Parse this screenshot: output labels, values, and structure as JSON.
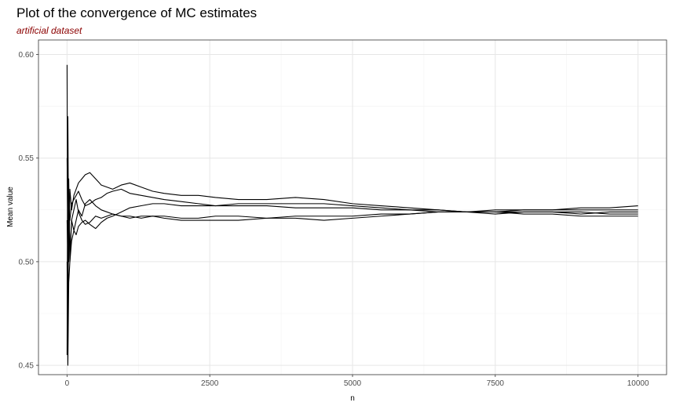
{
  "chart_data": {
    "type": "line",
    "title": "Plot of the convergence of MC estimates",
    "subtitle": "artificial dataset",
    "subtitle_color": "#8b0000",
    "xlabel": "n",
    "ylabel": "Mean value",
    "xlim": [
      -500,
      10500
    ],
    "ylim": [
      0.4455,
      0.607
    ],
    "xticks": [
      0,
      2500,
      5000,
      7500,
      10000
    ],
    "xtick_labels": [
      "0",
      "2500",
      "5000",
      "7500",
      "10000"
    ],
    "yticks": [
      0.45,
      0.5,
      0.55,
      0.6
    ],
    "ytick_labels": [
      "0.45",
      "0.50",
      "0.55",
      "0.60"
    ],
    "grid": true,
    "line_color": "#000000",
    "series": [
      {
        "x": [
          1,
          15,
          30,
          50,
          80,
          120,
          160,
          200,
          260,
          320,
          400,
          500,
          600,
          700,
          800,
          950,
          1100,
          1300,
          1500,
          1700,
          2000,
          2300,
          2600,
          3000,
          3500,
          4000,
          4500,
          5000,
          5500,
          6000,
          6500,
          7000,
          7500,
          8000,
          8500,
          9000,
          9500,
          10000
        ],
        "values": [
          0.595,
          0.46,
          0.53,
          0.505,
          0.52,
          0.515,
          0.52,
          0.525,
          0.522,
          0.528,
          0.53,
          0.527,
          0.525,
          0.524,
          0.523,
          0.522,
          0.522,
          0.521,
          0.522,
          0.521,
          0.52,
          0.52,
          0.52,
          0.52,
          0.521,
          0.522,
          0.522,
          0.522,
          0.523,
          0.523,
          0.524,
          0.524,
          0.525,
          0.525,
          0.525,
          0.526,
          0.526,
          0.527
        ]
      },
      {
        "x": [
          1,
          15,
          30,
          50,
          80,
          120,
          160,
          200,
          260,
          320,
          400,
          500,
          600,
          700,
          800,
          950,
          1100,
          1300,
          1500,
          1700,
          2000,
          2300,
          2600,
          3000,
          3500,
          4000,
          4500,
          5000,
          5500,
          6000,
          6500,
          7000,
          7500,
          8000,
          8500,
          9000,
          9500,
          10000
        ],
        "values": [
          0.455,
          0.57,
          0.5,
          0.535,
          0.525,
          0.532,
          0.535,
          0.538,
          0.54,
          0.542,
          0.543,
          0.54,
          0.537,
          0.536,
          0.535,
          0.537,
          0.538,
          0.536,
          0.534,
          0.533,
          0.532,
          0.532,
          0.531,
          0.53,
          0.53,
          0.531,
          0.53,
          0.528,
          0.527,
          0.526,
          0.525,
          0.524,
          0.523,
          0.524,
          0.524,
          0.523,
          0.524,
          0.524
        ]
      },
      {
        "x": [
          1,
          15,
          30,
          50,
          80,
          120,
          160,
          200,
          260,
          320,
          400,
          500,
          600,
          700,
          800,
          950,
          1100,
          1300,
          1500,
          1700,
          2000,
          2300,
          2600,
          3000,
          3500,
          4000,
          4500,
          5000,
          5500,
          6000,
          6500,
          7000,
          7500,
          8000,
          8500,
          9000,
          9500,
          10000
        ],
        "values": [
          0.5,
          0.45,
          0.49,
          0.5,
          0.51,
          0.515,
          0.513,
          0.517,
          0.519,
          0.52,
          0.518,
          0.516,
          0.519,
          0.521,
          0.522,
          0.524,
          0.526,
          0.527,
          0.528,
          0.528,
          0.527,
          0.527,
          0.527,
          0.528,
          0.528,
          0.528,
          0.528,
          0.527,
          0.526,
          0.525,
          0.525,
          0.524,
          0.524,
          0.524,
          0.524,
          0.524,
          0.523,
          0.523
        ]
      },
      {
        "x": [
          1,
          15,
          30,
          50,
          80,
          120,
          160,
          200,
          260,
          320,
          400,
          500,
          600,
          700,
          800,
          950,
          1100,
          1300,
          1500,
          1700,
          2000,
          2300,
          2600,
          3000,
          3500,
          4000,
          4500,
          5000,
          5500,
          6000,
          6500,
          7000,
          7500,
          8000,
          8500,
          9000,
          9500,
          10000
        ],
        "values": [
          0.55,
          0.51,
          0.525,
          0.52,
          0.528,
          0.53,
          0.532,
          0.534,
          0.53,
          0.527,
          0.528,
          0.53,
          0.531,
          0.533,
          0.534,
          0.535,
          0.533,
          0.532,
          0.531,
          0.53,
          0.529,
          0.528,
          0.527,
          0.527,
          0.527,
          0.526,
          0.526,
          0.526,
          0.525,
          0.525,
          0.524,
          0.524,
          0.524,
          0.523,
          0.523,
          0.522,
          0.522,
          0.522
        ]
      },
      {
        "x": [
          1,
          15,
          30,
          50,
          80,
          120,
          160,
          200,
          260,
          320,
          400,
          500,
          600,
          700,
          800,
          950,
          1100,
          1300,
          1500,
          1700,
          2000,
          2300,
          2600,
          3000,
          3500,
          4000,
          4500,
          5000,
          5500,
          6000,
          6500,
          7000,
          7500,
          8000,
          8500,
          9000,
          9500,
          10000
        ],
        "values": [
          0.52,
          0.5,
          0.54,
          0.5,
          0.52,
          0.525,
          0.53,
          0.524,
          0.52,
          0.518,
          0.519,
          0.522,
          0.521,
          0.522,
          0.523,
          0.522,
          0.521,
          0.522,
          0.522,
          0.522,
          0.521,
          0.521,
          0.522,
          0.522,
          0.521,
          0.521,
          0.52,
          0.521,
          0.522,
          0.523,
          0.524,
          0.524,
          0.524,
          0.525,
          0.525,
          0.525,
          0.525,
          0.525
        ]
      }
    ]
  }
}
